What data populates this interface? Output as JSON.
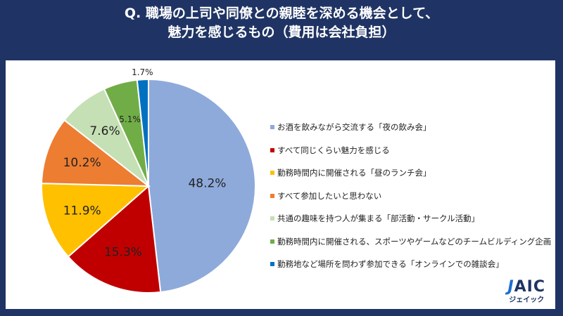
{
  "title": {
    "line1": "Q. 職場の上司や同僚との親睦を深める機会として、",
    "line2": "魅力を感じるもの（費用は会社負担）"
  },
  "chart_data": {
    "type": "pie",
    "start": "top",
    "direction": "clockwise",
    "legend_position": "right",
    "slices": [
      {
        "label": "お酒を飲みながら交流する「夜の飲み会」",
        "value": 48.2,
        "display": "48.2%",
        "color": "#8eaadb"
      },
      {
        "label": "すべて同じくらい魅力を感じる",
        "value": 15.3,
        "display": "15.3%",
        "color": "#c00000"
      },
      {
        "label": "勤務時間内に開催される「昼のランチ会」",
        "value": 11.9,
        "display": "11.9%",
        "color": "#ffc000"
      },
      {
        "label": "すべて参加したいと思わない",
        "value": 10.2,
        "display": "10.2%",
        "color": "#ed7d31"
      },
      {
        "label": "共通の趣味を持つ人が集まる「部活動・サークル活動」",
        "value": 7.6,
        "display": "7.6%",
        "color": "#c5e0b4"
      },
      {
        "label": "勤務時間内に開催される、スポーツやゲームなどのチームビルディング企画",
        "value": 5.1,
        "display": "5.1%",
        "color": "#70ad47"
      },
      {
        "label": "勤務地など場所を問わず参加できる「オンラインでの雑談会」",
        "value": 1.7,
        "display": "1.7%",
        "color": "#0070c0"
      }
    ]
  },
  "logo": {
    "mark": "JAIC",
    "kana": "ジェイック"
  }
}
